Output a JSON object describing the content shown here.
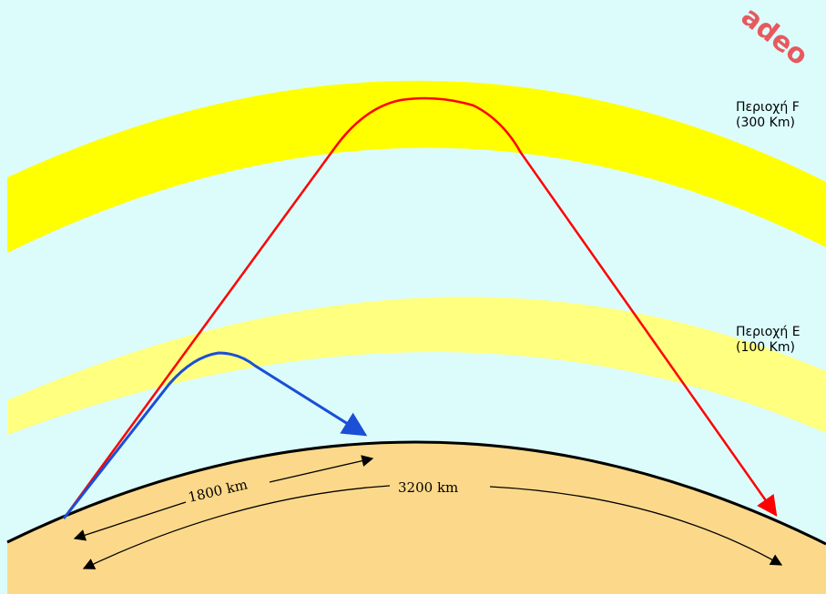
{
  "layers": {
    "f": {
      "name": "Περιοχή F",
      "height": "(300 Km)"
    },
    "e": {
      "name": "Περιοχή E",
      "height": "(100 Km)"
    }
  },
  "distances": {
    "short": "1800 km",
    "long": "3200 km"
  },
  "watermark": "adeo",
  "colors": {
    "sky": "#dcfcfc",
    "f_layer": "#ffff00",
    "e_layer": "#ffff80",
    "earth": "#fcd98a",
    "ground_line": "#000000",
    "red_path": "#ff0000",
    "blue_path": "#1a4fd6",
    "watermark": "#e8474c"
  }
}
